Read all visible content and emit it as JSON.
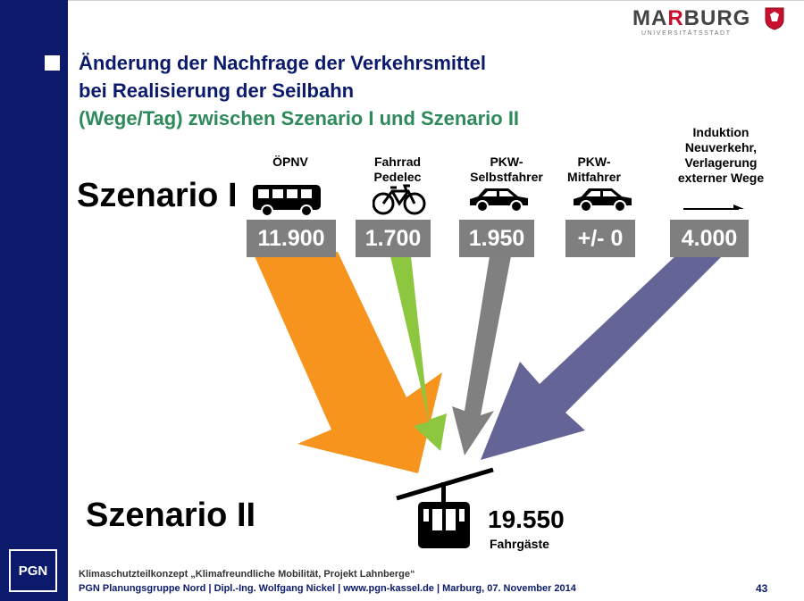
{
  "brand": {
    "name_part1": "MA",
    "name_accent": "R",
    "name_part2": "BURG",
    "subtitle": "UNIVERSITÄTSSTADT",
    "footer_logo": "PGN"
  },
  "title": {
    "line1": "Änderung der Nachfrage der Verkehrsmittel",
    "line2": "bei Realisierung der Seilbahn",
    "line3": "(Wege/Tag) zwischen Szenario I und Szenario II"
  },
  "scenario1": "Szenario I",
  "scenario2": "Szenario II",
  "categories": [
    {
      "label": "ÖPNV",
      "value": "11.900",
      "icon": "bus-icon",
      "color": "#f7941d"
    },
    {
      "label": "Fahrrad\nPedelec",
      "value": "1.700",
      "icon": "bicycle-icon",
      "color": "#8dc63f"
    },
    {
      "label": "PKW-\nSelbstfahrer",
      "value": "1.950",
      "icon": "car-icon",
      "color": "#808080"
    },
    {
      "label": "PKW-\nMitfahrer",
      "value": "+/- 0",
      "icon": "car-icon",
      "color": "#808080"
    },
    {
      "label": "Induktion\nNeuverkehr,\nVerlagerung\nexterner Wege",
      "value": "4.000",
      "icon": "arrow-right-icon",
      "color": "#646496"
    }
  ],
  "total": {
    "value": "19.550",
    "label": "Fahrgäste",
    "icon": "gondola-icon"
  },
  "footer": {
    "line1": "Klimaschutzteilkonzept „Klimafreundliche Mobilität, Projekt Lahnberge“",
    "line2": "PGN Planungsgruppe Nord | Dipl.-Ing. Wolfgang Nickel | www.pgn-kassel.de | Marburg, 07. November 2014",
    "page": "43"
  },
  "colors": {
    "sidebar": "#0c1a6b",
    "title": "#0c1a6b",
    "subtitle": "#2f8a5b",
    "value_box": "#7f7f7f"
  }
}
